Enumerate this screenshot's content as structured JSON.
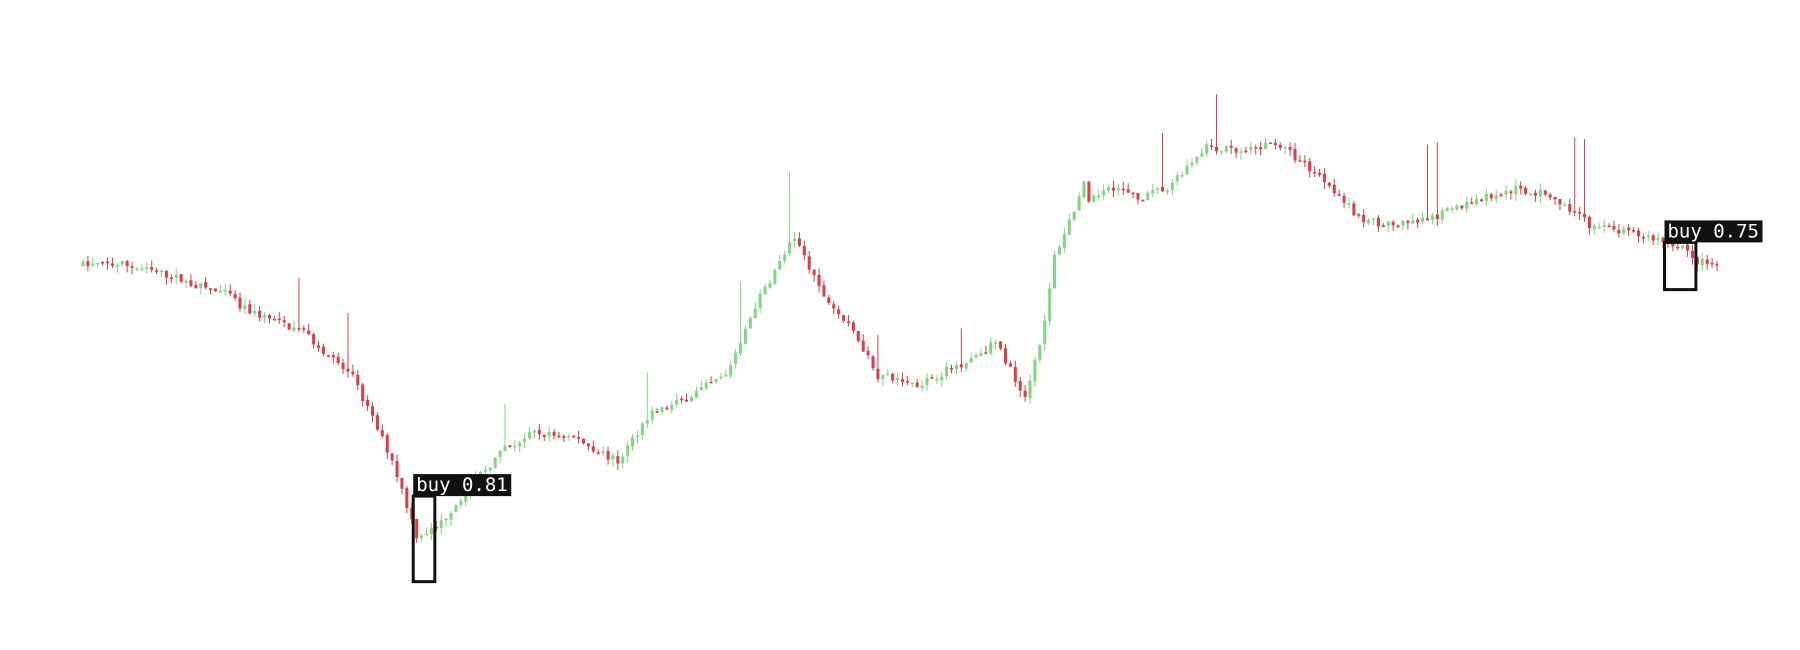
{
  "chart_data": {
    "type": "candlestick",
    "title": "",
    "xlabel": "",
    "ylabel": "",
    "axes_visible": false,
    "grid": false,
    "ylim": [
      0,
      100
    ],
    "colors": {
      "up": "#7fd87f",
      "down": "#db3e46",
      "detection_box": "#111111",
      "detection_label_bg": "#111111",
      "detection_label_text": "#ffffff"
    },
    "anchors": [
      [
        0,
        60.2
      ],
      [
        8,
        60.3
      ],
      [
        18,
        58.3
      ],
      [
        22,
        57.0
      ],
      [
        30,
        55.0
      ],
      [
        32,
        53.0
      ],
      [
        45,
        48.8
      ],
      [
        55,
        41.0
      ],
      [
        63,
        27.2
      ],
      [
        68,
        14.4
      ],
      [
        72,
        15.5
      ],
      [
        76,
        19.8
      ],
      [
        82,
        25.6
      ],
      [
        86,
        29.0
      ],
      [
        92,
        31.6
      ],
      [
        100,
        31.0
      ],
      [
        109,
        26.8
      ],
      [
        115,
        34.5
      ],
      [
        120,
        36.3
      ],
      [
        131,
        41.4
      ],
      [
        137,
        53.3
      ],
      [
        145,
        65.0
      ],
      [
        150,
        56.1
      ],
      [
        158,
        47.7
      ],
      [
        162,
        41.5
      ],
      [
        170,
        40.0
      ],
      [
        178,
        43.0
      ],
      [
        186,
        47.0
      ],
      [
        192,
        38.0
      ],
      [
        196,
        50.3
      ],
      [
        198,
        61.6
      ],
      [
        204,
        73.7
      ],
      [
        205,
        70.3
      ],
      [
        209,
        73.9
      ],
      [
        215,
        71.3
      ],
      [
        221,
        73.4
      ],
      [
        229,
        80.5
      ],
      [
        236,
        79.0
      ],
      [
        243,
        81.0
      ],
      [
        254,
        74.0
      ],
      [
        260,
        68.0
      ],
      [
        268,
        66.8
      ],
      [
        275,
        68.0
      ],
      [
        283,
        71.0
      ],
      [
        292,
        73.0
      ],
      [
        299,
        72.0
      ],
      [
        307,
        67.0
      ],
      [
        315,
        65.5
      ],
      [
        320,
        64.8
      ],
      [
        326,
        63.4
      ],
      [
        328,
        61.0
      ],
      [
        333,
        60.0
      ]
    ],
    "detections": [
      {
        "label": "buy 0.81",
        "candle_start": 68,
        "candle_end": 71,
        "y_top": 21.0,
        "y_bottom": 6.5
      },
      {
        "label": "buy 0.75",
        "candle_start": 323,
        "candle_end": 328,
        "y_top": 64.0,
        "y_bottom": 56.0
      }
    ]
  }
}
